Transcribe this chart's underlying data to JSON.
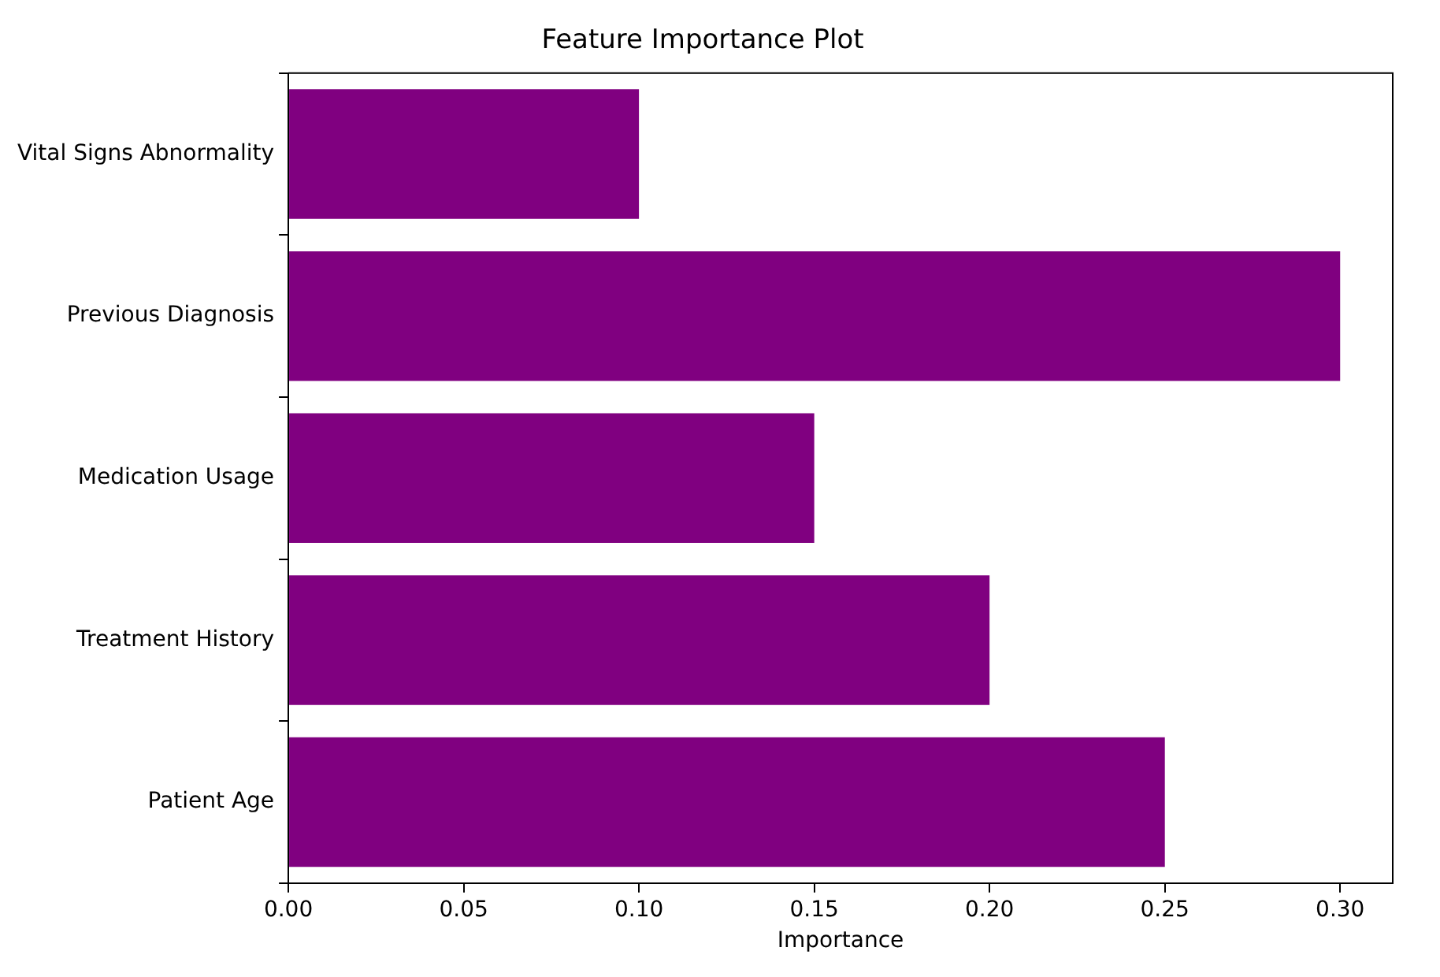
{
  "chart_data": {
    "type": "bar",
    "orientation": "horizontal",
    "title": "Feature Importance Plot",
    "xlabel": "Importance",
    "categories": [
      "Vital Signs Abnormality",
      "Previous Diagnosis",
      "Medication Usage",
      "Treatment History",
      "Patient Age"
    ],
    "values": [
      0.1,
      0.3,
      0.15,
      0.2,
      0.25
    ],
    "color": "#800080",
    "xlim": [
      0,
      0.315
    ],
    "xticks": [
      {
        "value": 0,
        "label": "0.00"
      },
      {
        "value": 0.05,
        "label": "0.05"
      },
      {
        "value": 0.1,
        "label": "0.10"
      },
      {
        "value": 0.15,
        "label": "0.15"
      },
      {
        "value": 0.2,
        "label": "0.20"
      },
      {
        "value": 0.25,
        "label": "0.25"
      },
      {
        "value": 0.3,
        "label": "0.30"
      }
    ],
    "grid": false,
    "legend": false
  }
}
